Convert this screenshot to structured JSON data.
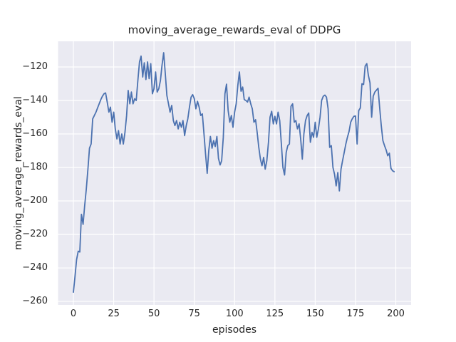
{
  "colors": {
    "figure_background": "#FFFFFF",
    "axes_background": "#EAEAF2",
    "grid": "#FFFFFF",
    "line": "#4C72B0",
    "text": "#262626"
  },
  "chart_data": {
    "type": "line",
    "title": "moving_average_rewards_eval of DDPG",
    "xlabel": "episodes",
    "ylabel": "moving_average_rewards_eval",
    "grid": true,
    "legend": "none",
    "style": "seaborn-darkgrid",
    "xlim": [
      -9.5,
      209.5
    ],
    "ylim": [
      -262.1,
      -104.7
    ],
    "x_ticks": [
      0,
      25,
      50,
      75,
      100,
      125,
      150,
      175,
      200
    ],
    "x_tick_labels": [
      "0",
      "25",
      "50",
      "75",
      "100",
      "125",
      "150",
      "175",
      "200"
    ],
    "y_ticks": [
      -120,
      -140,
      -160,
      -180,
      -200,
      -220,
      -240,
      -260
    ],
    "y_tick_labels": [
      "−120",
      "−140",
      "−160",
      "−180",
      "−200",
      "−220",
      "−240",
      "−260"
    ],
    "series": [
      {
        "name": "moving_average_rewards_eval",
        "color": "#4C72B0",
        "x_start": 0,
        "x_step": 1,
        "values": [
          -254.5,
          -245,
          -235,
          -230,
          -230.5,
          -208,
          -214,
          -203,
          -193,
          -181,
          -168.5,
          -166,
          -151,
          -149,
          -147,
          -144.5,
          -142,
          -139.5,
          -137.5,
          -136,
          -135.5,
          -141,
          -147,
          -144,
          -153,
          -147,
          -157,
          -163,
          -158,
          -166,
          -160,
          -166,
          -159,
          -149,
          -134,
          -142,
          -135,
          -142,
          -139,
          -140,
          -128,
          -117,
          -113.5,
          -126,
          -117.5,
          -127.5,
          -117,
          -127,
          -118,
          -136,
          -133,
          -123,
          -135,
          -133,
          -128,
          -119,
          -111.5,
          -124,
          -137,
          -142,
          -147,
          -143,
          -152,
          -155,
          -152,
          -157,
          -153,
          -156,
          -152,
          -161,
          -155,
          -151,
          -144,
          -138,
          -136.5,
          -139,
          -145,
          -140.5,
          -144,
          -149,
          -148,
          -160,
          -172,
          -183.5,
          -170,
          -161.5,
          -168.5,
          -164,
          -167.5,
          -161.5,
          -174.5,
          -178.5,
          -176,
          -162,
          -136,
          -130.3,
          -146,
          -153,
          -149,
          -156,
          -147,
          -142,
          -131,
          -123,
          -134.5,
          -132,
          -139.5,
          -140,
          -141,
          -138,
          -142,
          -145,
          -153,
          -151.5,
          -159,
          -168,
          -175,
          -179,
          -174,
          -181,
          -176,
          -165,
          -150,
          -146.5,
          -154,
          -149.5,
          -154,
          -147,
          -152,
          -166,
          -180,
          -184.5,
          -171,
          -167,
          -166,
          -143.5,
          -142,
          -153,
          -152,
          -157,
          -154,
          -163,
          -175,
          -160,
          -152,
          -149,
          -147.5,
          -165,
          -159,
          -162,
          -153,
          -162,
          -157,
          -150,
          -140,
          -137.5,
          -136.8,
          -138,
          -145,
          -168,
          -167,
          -180,
          -184,
          -191,
          -183,
          -194,
          -181,
          -176,
          -171,
          -166,
          -162,
          -158.5,
          -153,
          -151,
          -149.5,
          -149.3,
          -166,
          -146,
          -144.5,
          -130,
          -130.5,
          -119.5,
          -118,
          -125,
          -129.5,
          -150,
          -137.5,
          -135,
          -133.8,
          -132.7,
          -144.5,
          -155,
          -164,
          -167,
          -169.5,
          -173,
          -171.5,
          -180.5,
          -182,
          -182.5
        ]
      }
    ]
  }
}
